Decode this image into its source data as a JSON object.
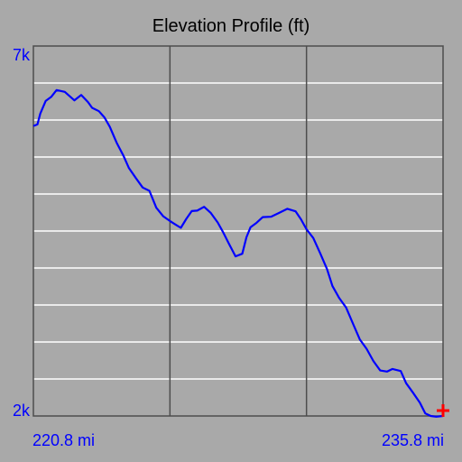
{
  "chart_data": {
    "type": "line",
    "title": "Elevation Profile (ft)",
    "xlabel": "",
    "ylabel": "",
    "xlim": [
      220.8,
      235.8
    ],
    "ylim": [
      2000,
      7000
    ],
    "x_tick_labels": {
      "min": "220.8 mi",
      "max": "235.8 mi"
    },
    "y_tick_labels": {
      "min": "2k",
      "max": "7k"
    },
    "grid": true,
    "horizontal_gridlines": [
      2500,
      3000,
      3500,
      4000,
      4500,
      5000,
      5500,
      6000,
      6500
    ],
    "vertical_gridlines": [
      225.8,
      230.8
    ],
    "colors": {
      "background": "#a9a9a9",
      "plot_border": "#4d4d4d",
      "grid_horizontal": "#ffffff",
      "grid_vertical": "#4d4d4d",
      "line": "#0000ff",
      "title": "#000000",
      "axis_labels": "#0000ff",
      "marker": "#ff0000"
    },
    "marker": {
      "x": 235.8,
      "y": 2000,
      "icon": "red-plus-marker"
    },
    "series": [
      {
        "x": [
          220.8,
          220.95,
          221.05,
          221.25,
          221.45,
          221.65,
          221.95,
          222.3,
          222.55,
          222.8,
          222.95,
          223.2,
          223.4,
          223.6,
          223.85,
          224.1,
          224.3,
          224.55,
          224.8,
          225.05,
          225.3,
          225.55,
          225.8,
          226.0,
          226.2,
          226.4,
          226.6,
          226.8,
          227.05,
          227.3,
          227.55,
          227.75,
          227.95,
          228.2,
          228.45,
          228.6,
          228.75,
          228.95,
          229.2,
          229.5,
          229.8,
          230.1,
          230.4,
          230.6,
          230.8,
          231.05,
          231.3,
          231.55,
          231.75,
          232.0,
          232.25,
          232.5,
          232.75,
          233.0,
          233.25,
          233.5,
          233.75,
          233.95,
          234.25,
          234.45,
          234.7,
          234.95,
          235.15,
          235.35,
          235.55,
          235.8
        ],
        "y": [
          5920,
          5940,
          6100,
          6250,
          6320,
          6390,
          6380,
          6280,
          6330,
          6250,
          6150,
          6120,
          6050,
          5900,
          5700,
          5500,
          5350,
          5230,
          5080,
          5050,
          4800,
          4700,
          4650,
          4580,
          4550,
          4650,
          4770,
          4790,
          4820,
          4750,
          4600,
          4480,
          4350,
          4150,
          4200,
          4400,
          4550,
          4620,
          4680,
          4700,
          4730,
          4800,
          4780,
          4650,
          4530,
          4390,
          4200,
          4000,
          3750,
          3600,
          3450,
          3250,
          3050,
          2900,
          2750,
          2600,
          2600,
          2650,
          2600,
          2450,
          2300,
          2180,
          2050,
          2000,
          1990,
          2000
        ]
      }
    ]
  }
}
